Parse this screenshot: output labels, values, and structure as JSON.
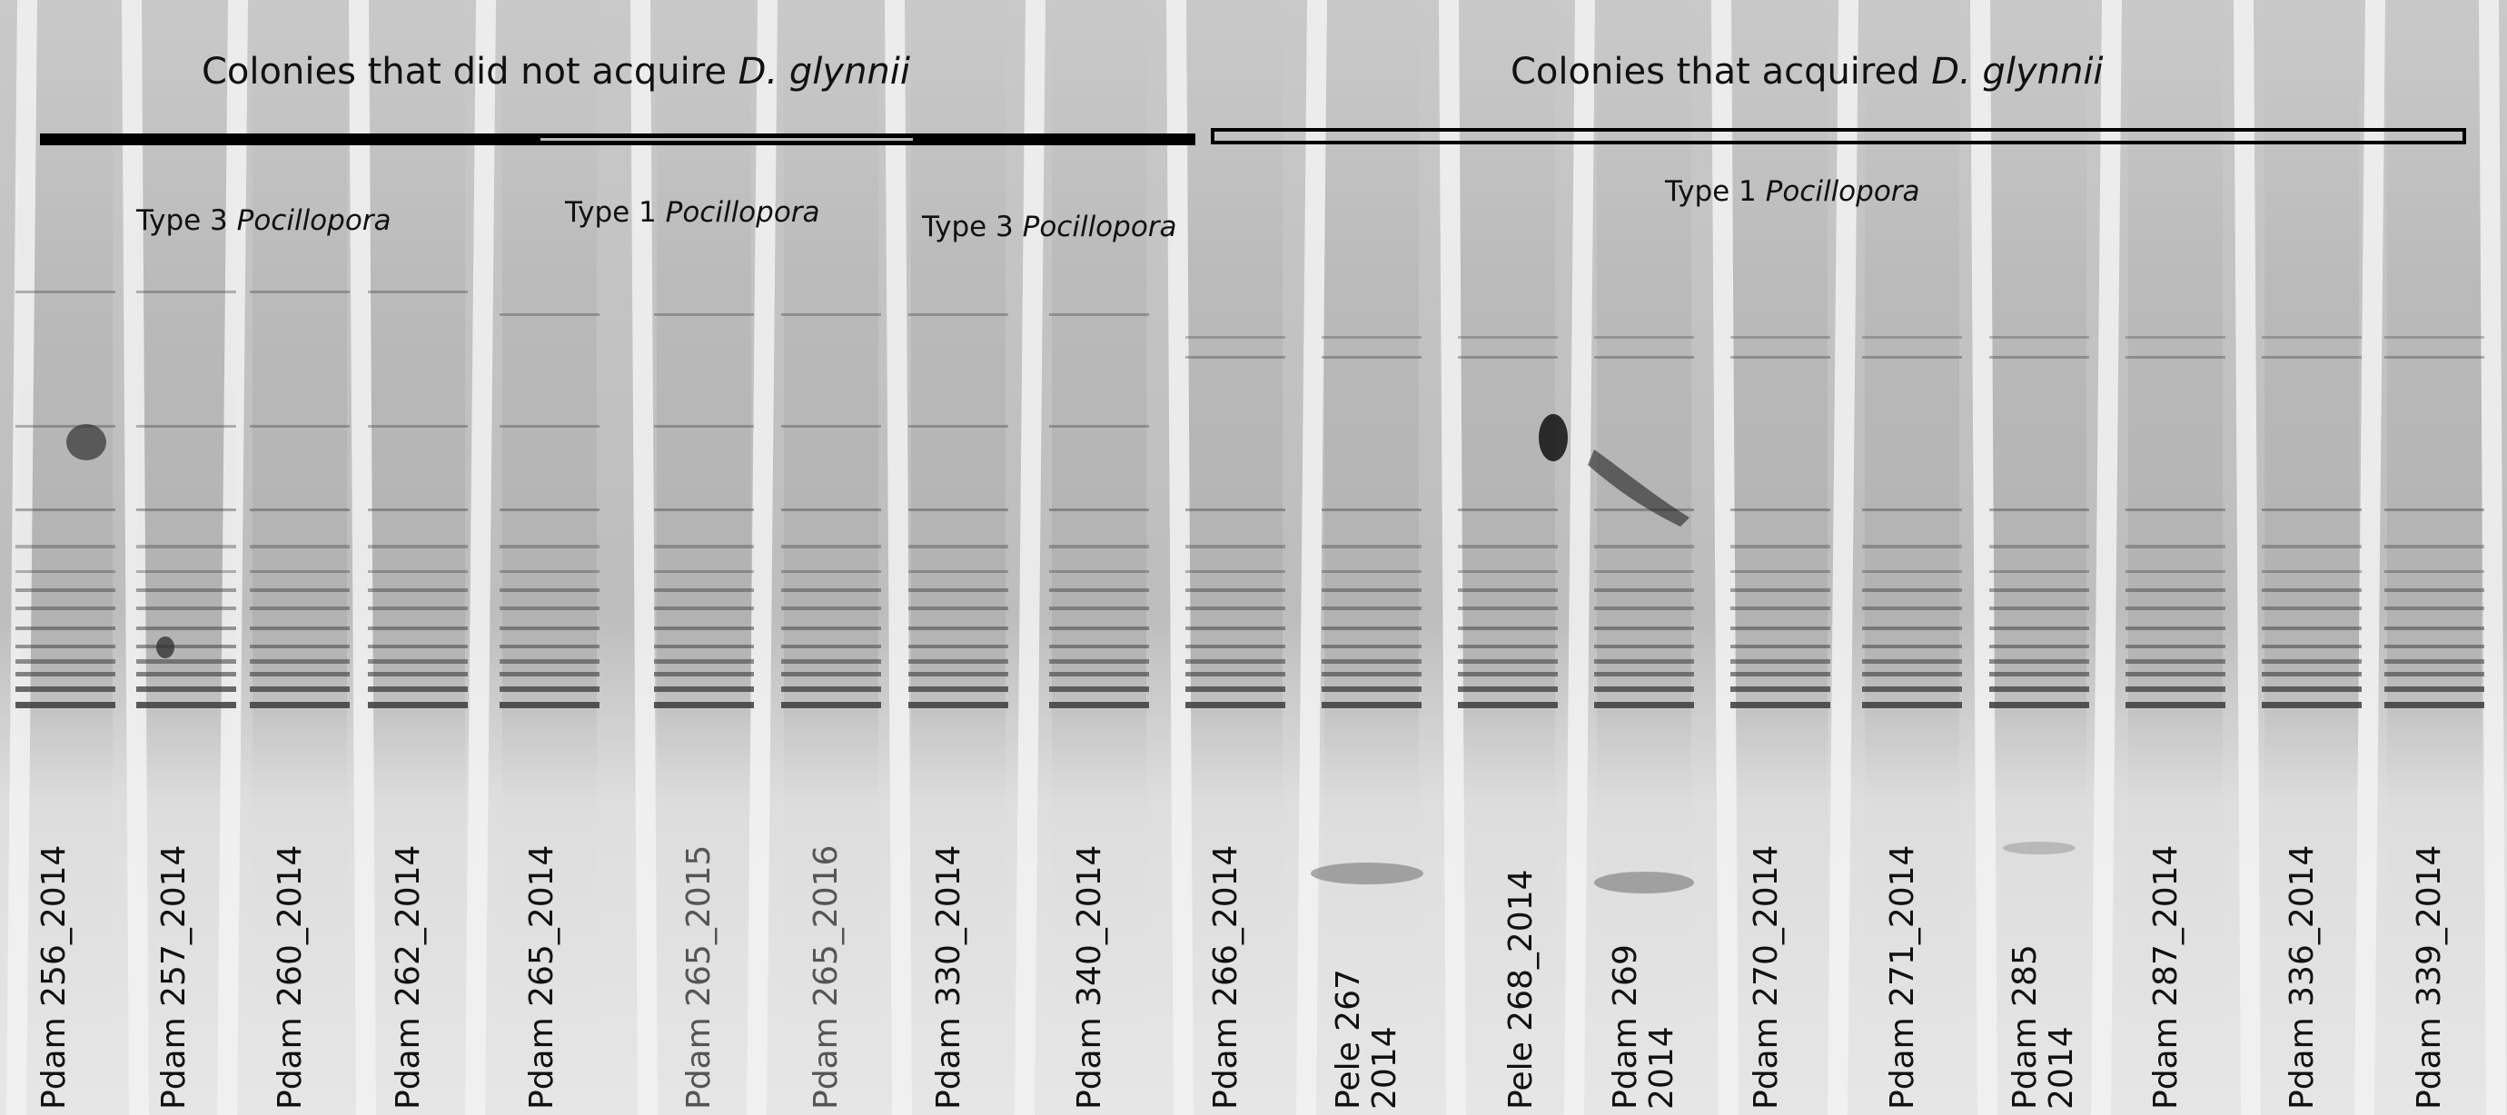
{
  "groups": {
    "not_acquired": {
      "text": "Colonies that did not acquire ",
      "species": "D. glynnii"
    },
    "acquired": {
      "text": "Colonies that acquired ",
      "species": "D. glynnii"
    }
  },
  "types": {
    "type3_left": {
      "prefix": "Type 3 ",
      "genus": "Pocillopora"
    },
    "type1_mid": {
      "prefix": "Type 1 ",
      "genus": "Pocillopora"
    },
    "type3_right": {
      "prefix": "Type 3 ",
      "genus": "Pocillopora"
    },
    "type1_acq": {
      "prefix": "Type 1 ",
      "genus": "Pocillopora"
    }
  },
  "lanes": [
    {
      "line1": "Pdam 256_2014",
      "line2": ""
    },
    {
      "line1": "Pdam 257_2014",
      "line2": ""
    },
    {
      "line1": "Pdam 260_2014",
      "line2": ""
    },
    {
      "line1": "Pdam 262_2014",
      "line2": ""
    },
    {
      "line1": "Pdam 265_2014",
      "line2": ""
    },
    {
      "line1": "Pdam 265_2015",
      "line2": ""
    },
    {
      "line1": "Pdam 265_2016",
      "line2": ""
    },
    {
      "line1": "Pdam 330_2014",
      "line2": ""
    },
    {
      "line1": "Pdam 340_2014",
      "line2": ""
    },
    {
      "line1": "Pdam 266_2014",
      "line2": ""
    },
    {
      "line1": "Pele 267",
      "line2": "2014"
    },
    {
      "line1": "Pele 268_2014",
      "line2": ""
    },
    {
      "line1": "Pdam 269",
      "line2": "2014"
    },
    {
      "line1": "Pdam 270_2014",
      "line2": ""
    },
    {
      "line1": "Pdam 271_2014",
      "line2": ""
    },
    {
      "line1": "Pdam 285",
      "line2": "2014"
    },
    {
      "line1": "Pdam 287_2014",
      "line2": ""
    },
    {
      "line1": "Pdam 336_2014",
      "line2": ""
    },
    {
      "line1": "Pdam 339_2014",
      "line2": ""
    }
  ]
}
